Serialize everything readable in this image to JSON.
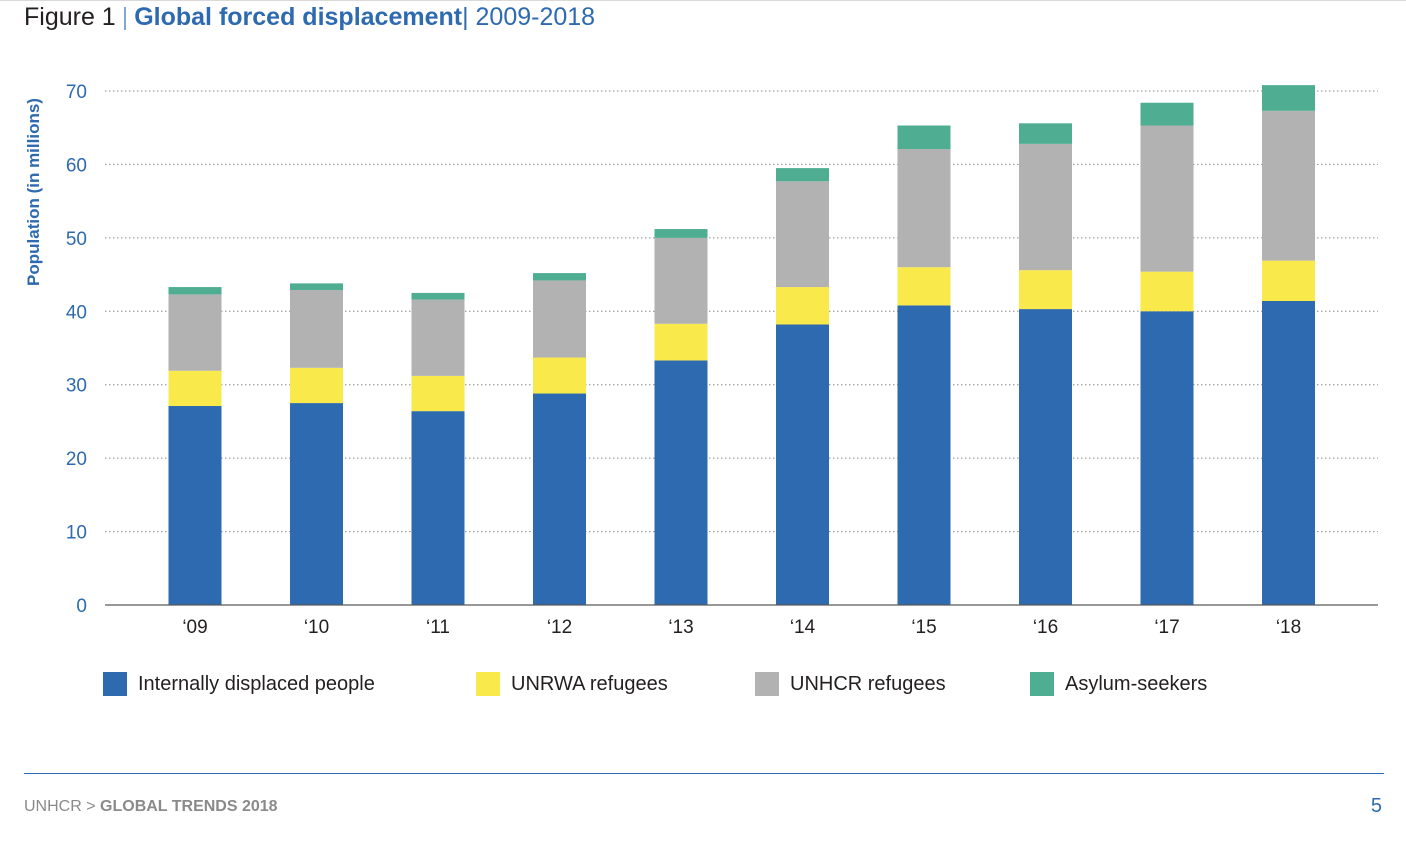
{
  "header": {
    "figure_label": "Figure 1",
    "separator": "|",
    "title": "Global forced displacement",
    "years_separator": "|",
    "years": "2009-2018"
  },
  "footer": {
    "org": "UNHCR",
    "arrow": ">",
    "report": "GLOBAL TRENDS 2018",
    "page": "5"
  },
  "colors": {
    "idp": "#2d6aaf",
    "unrwa": "#f9e94b",
    "unhcr": "#b2b2b2",
    "asylum": "#4fae92",
    "axis_text": "#2d6aaf",
    "tick_text": "#231f20"
  },
  "chart_data": {
    "type": "bar",
    "stacked": true,
    "title": "Global forced displacement",
    "xlabel": "",
    "ylabel": "Population (in millions)",
    "ylim": [
      0,
      70
    ],
    "yticks": [
      0,
      10,
      20,
      30,
      40,
      50,
      60,
      70
    ],
    "grid": true,
    "legend_position": "bottom",
    "categories": [
      "‘09",
      "‘10",
      "‘11",
      "‘12",
      "‘13",
      "‘14",
      "‘15",
      "‘16",
      "‘17",
      "‘18"
    ],
    "series": [
      {
        "name": "Internally displaced people",
        "color": "#2d6aaf",
        "values": [
          27.1,
          27.5,
          26.4,
          28.8,
          33.3,
          38.2,
          40.8,
          40.3,
          40.0,
          41.4
        ]
      },
      {
        "name": "UNRWA refugees",
        "color": "#f9e94b",
        "values": [
          4.8,
          4.8,
          4.8,
          4.9,
          5.0,
          5.1,
          5.2,
          5.3,
          5.4,
          5.5
        ]
      },
      {
        "name": "UNHCR refugees",
        "color": "#b2b2b2",
        "values": [
          10.4,
          10.6,
          10.4,
          10.5,
          11.7,
          14.4,
          16.1,
          17.2,
          19.9,
          20.4
        ]
      },
      {
        "name": "Asylum-seekers",
        "color": "#4fae92",
        "values": [
          1.0,
          0.9,
          0.9,
          1.0,
          1.2,
          1.8,
          3.2,
          2.8,
          3.1,
          3.5
        ]
      }
    ]
  }
}
